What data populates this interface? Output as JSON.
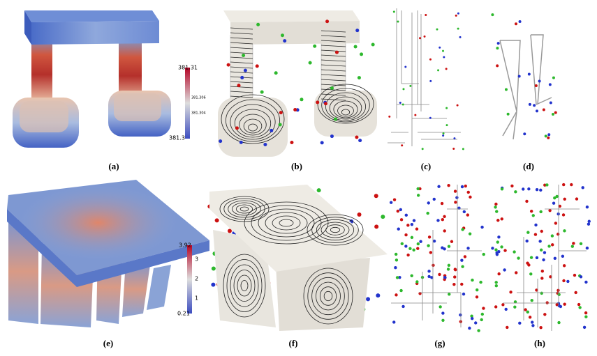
{
  "panels": [
    {
      "label": "(a)",
      "colorbar": {
        "ticks": [
          "381.31",
          "381.306",
          "381.304",
          "381.3"
        ]
      }
    },
    {
      "label": "(b)"
    },
    {
      "label": "(c)"
    },
    {
      "label": "(d)"
    },
    {
      "label": "(e)",
      "colorbar": {
        "ticks": [
          "3.92",
          "3",
          "2",
          "1",
          "0.21"
        ]
      }
    },
    {
      "label": "(f)"
    },
    {
      "label": "(g)"
    },
    {
      "label": "(h)"
    }
  ]
}
